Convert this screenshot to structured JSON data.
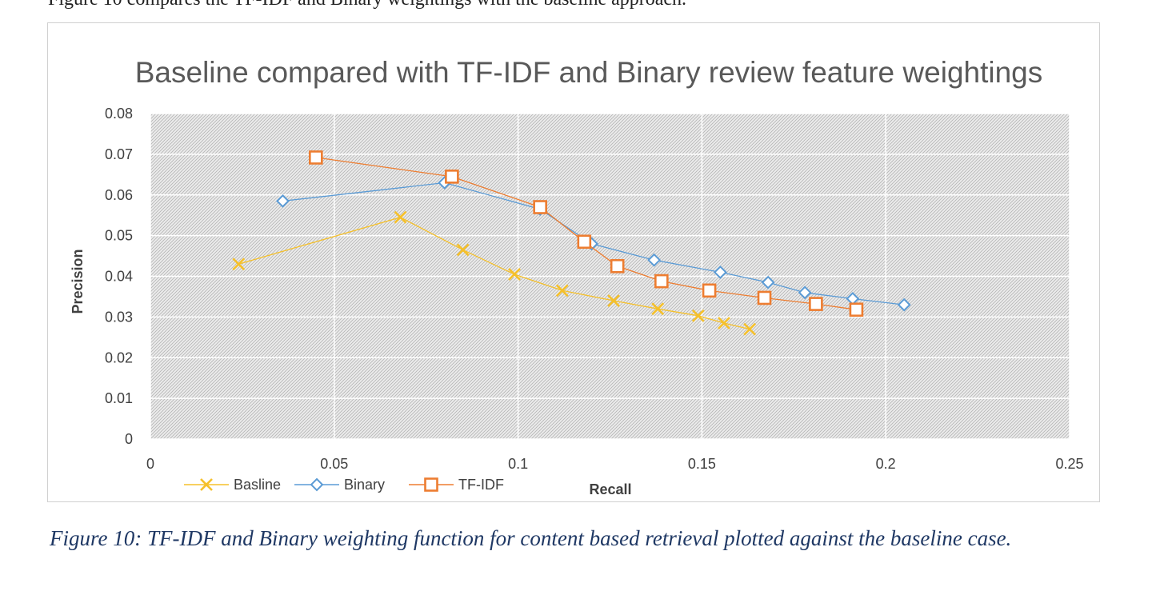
{
  "top_fragment": "Figure 10 compares the TF-IDF and Binary weightings with the baseline approach.",
  "chart_data": {
    "type": "line",
    "title": "Baseline compared with TF-IDF and Binary review feature weightings",
    "xlabel": "Recall",
    "ylabel": "Precision",
    "xlim": [
      0,
      0.25
    ],
    "ylim": [
      0,
      0.08
    ],
    "x_ticks": [
      "0",
      "0.05",
      "0.1",
      "0.15",
      "0.2",
      "0.25"
    ],
    "y_ticks": [
      "0",
      "0.01",
      "0.02",
      "0.03",
      "0.04",
      "0.05",
      "0.06",
      "0.07",
      "0.08"
    ],
    "grid": true,
    "legend": "bottom-left",
    "series": [
      {
        "name": "Basline",
        "marker": "x",
        "color": "#f5c02b",
        "points": [
          [
            0.024,
            0.043
          ],
          [
            0.068,
            0.0545
          ],
          [
            0.085,
            0.0465
          ],
          [
            0.099,
            0.0405
          ],
          [
            0.112,
            0.0365
          ],
          [
            0.126,
            0.034
          ],
          [
            0.138,
            0.032
          ],
          [
            0.149,
            0.0303
          ],
          [
            0.156,
            0.0285
          ],
          [
            0.163,
            0.027
          ]
        ]
      },
      {
        "name": "Binary",
        "marker": "diamond",
        "color": "#5b9bd5",
        "points": [
          [
            0.036,
            0.0585
          ],
          [
            0.08,
            0.063
          ],
          [
            0.106,
            0.0565
          ],
          [
            0.12,
            0.048
          ],
          [
            0.137,
            0.044
          ],
          [
            0.155,
            0.041
          ],
          [
            0.168,
            0.0385
          ],
          [
            0.178,
            0.036
          ],
          [
            0.191,
            0.0345
          ],
          [
            0.205,
            0.033
          ]
        ]
      },
      {
        "name": "TF-IDF",
        "marker": "square",
        "color": "#ed7d31",
        "points": [
          [
            0.045,
            0.0692
          ],
          [
            0.082,
            0.0645
          ],
          [
            0.106,
            0.057
          ],
          [
            0.118,
            0.0485
          ],
          [
            0.127,
            0.0425
          ],
          [
            0.139,
            0.0388
          ],
          [
            0.152,
            0.0365
          ],
          [
            0.167,
            0.0347
          ],
          [
            0.181,
            0.0332
          ],
          [
            0.192,
            0.0318
          ]
        ]
      }
    ]
  },
  "caption": "Figure 10: TF-IDF and Binary weighting function for content based retrieval plotted against the baseline case."
}
